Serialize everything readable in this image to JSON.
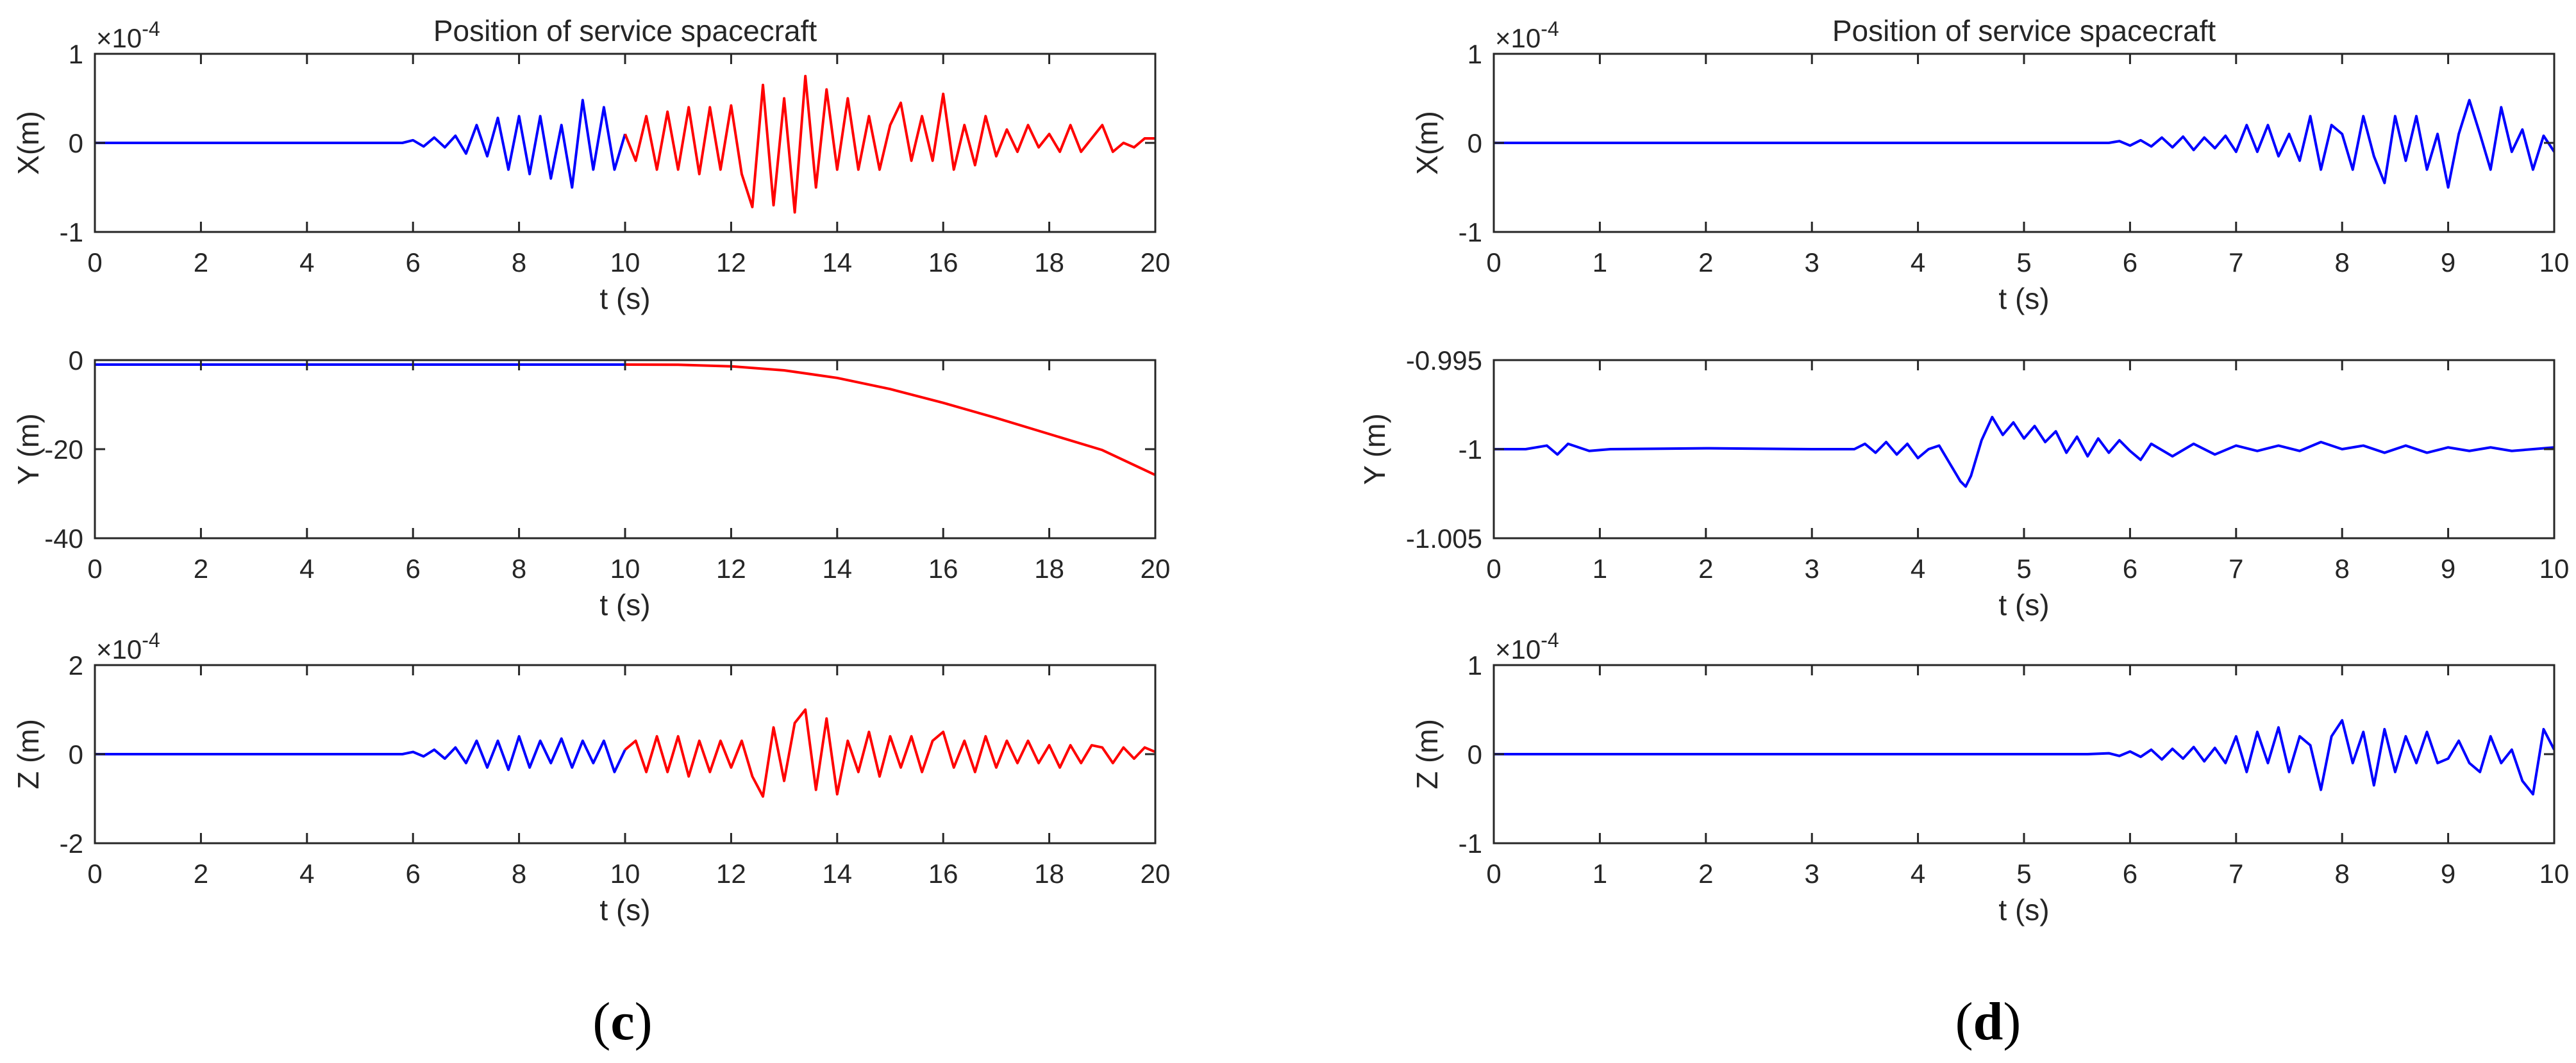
{
  "figure": {
    "panel_labels": [
      {
        "open": "(",
        "letter": "c",
        "close": ")"
      },
      {
        "open": "(",
        "letter": "d",
        "close": ")"
      }
    ]
  },
  "colors": {
    "blue": "#0000ff",
    "red": "#ff0000",
    "axis": "#262626"
  },
  "chart_data": [
    {
      "panel": "c",
      "row": 0,
      "type": "line",
      "title": "Position of service spacecraft",
      "xlabel": "t (s)",
      "ylabel": "X(m)",
      "exponent": "×10-4",
      "xlim": [
        0,
        20
      ],
      "ylim": [
        -1,
        1
      ],
      "xticks": [
        0,
        2,
        4,
        6,
        8,
        10,
        12,
        14,
        16,
        18,
        20
      ],
      "yticks": [
        -1,
        0,
        1
      ],
      "series": [
        {
          "color": "blue",
          "x": [
            0,
            5.8,
            6.0,
            6.2,
            6.4,
            6.6,
            6.8,
            7.0,
            7.2,
            7.4,
            7.6,
            7.8,
            8.0,
            8.2,
            8.4,
            8.6,
            8.8,
            9.0,
            9.2,
            9.4,
            9.6,
            9.8,
            10.0
          ],
          "y": [
            0,
            0,
            0.03,
            -0.04,
            0.06,
            -0.05,
            0.08,
            -0.12,
            0.2,
            -0.15,
            0.28,
            -0.3,
            0.3,
            -0.35,
            0.3,
            -0.4,
            0.2,
            -0.5,
            0.48,
            -0.3,
            0.4,
            -0.3,
            0.1
          ]
        },
        {
          "color": "red",
          "x": [
            10.0,
            10.2,
            10.4,
            10.6,
            10.8,
            11.0,
            11.2,
            11.4,
            11.6,
            11.8,
            12.0,
            12.2,
            12.4,
            12.6,
            12.8,
            13.0,
            13.2,
            13.4,
            13.6,
            13.8,
            14.0,
            14.2,
            14.4,
            14.6,
            14.8,
            15.0,
            15.2,
            15.4,
            15.6,
            15.8,
            16.0,
            16.2,
            16.4,
            16.6,
            16.8,
            17.0,
            17.2,
            17.4,
            17.6,
            17.8,
            18.0,
            18.2,
            18.4,
            18.6,
            18.8,
            19.0,
            19.2,
            19.4,
            19.6,
            19.8,
            20.0
          ],
          "y": [
            0.1,
            -0.2,
            0.3,
            -0.3,
            0.35,
            -0.3,
            0.4,
            -0.35,
            0.4,
            -0.3,
            0.42,
            -0.35,
            -0.72,
            0.65,
            -0.7,
            0.5,
            -0.78,
            0.75,
            -0.5,
            0.6,
            -0.3,
            0.5,
            -0.3,
            0.3,
            -0.3,
            0.2,
            0.45,
            -0.2,
            0.3,
            -0.2,
            0.55,
            -0.3,
            0.2,
            -0.25,
            0.3,
            -0.15,
            0.15,
            -0.1,
            0.2,
            -0.05,
            0.1,
            -0.1,
            0.2,
            -0.1,
            0.05,
            0.2,
            -0.1,
            0.0,
            -0.05,
            0.05,
            0.05
          ]
        }
      ]
    },
    {
      "panel": "c",
      "row": 1,
      "type": "line",
      "title": "",
      "xlabel": "t (s)",
      "ylabel": "Y (m)",
      "exponent": "",
      "xlim": [
        0,
        20
      ],
      "ylim": [
        -40,
        0
      ],
      "xticks": [
        0,
        2,
        4,
        6,
        8,
        10,
        12,
        14,
        16,
        18,
        20
      ],
      "yticks": [
        -40,
        -20,
        0
      ],
      "series": [
        {
          "color": "blue",
          "x": [
            0,
            10
          ],
          "y": [
            -1,
            -1
          ]
        },
        {
          "color": "red",
          "x": [
            10,
            11,
            12,
            13,
            14,
            15,
            16,
            17,
            18,
            19,
            20
          ],
          "y": [
            -1,
            -1.05,
            -1.4,
            -2.3,
            -4.0,
            -6.5,
            -9.6,
            -13.0,
            -16.6,
            -20.2,
            -25.8
          ]
        }
      ]
    },
    {
      "panel": "c",
      "row": 2,
      "type": "line",
      "title": "",
      "xlabel": "t (s)",
      "ylabel": "Z (m)",
      "exponent": "×10-4",
      "xlim": [
        0,
        20
      ],
      "ylim": [
        -2,
        2
      ],
      "xticks": [
        0,
        2,
        4,
        6,
        8,
        10,
        12,
        14,
        16,
        18,
        20
      ],
      "yticks": [
        -2,
        0,
        2
      ],
      "series": [
        {
          "color": "blue",
          "x": [
            0,
            5.8,
            6.0,
            6.2,
            6.4,
            6.6,
            6.8,
            7.0,
            7.2,
            7.4,
            7.6,
            7.8,
            8.0,
            8.2,
            8.4,
            8.6,
            8.8,
            9.0,
            9.2,
            9.4,
            9.6,
            9.8,
            10.0
          ],
          "y": [
            0,
            0,
            0.05,
            -0.05,
            0.1,
            -0.1,
            0.15,
            -0.2,
            0.3,
            -0.3,
            0.3,
            -0.35,
            0.4,
            -0.3,
            0.3,
            -0.2,
            0.35,
            -0.3,
            0.3,
            -0.2,
            0.3,
            -0.4,
            0.1
          ]
        },
        {
          "color": "red",
          "x": [
            10.0,
            10.2,
            10.4,
            10.6,
            10.8,
            11.0,
            11.2,
            11.4,
            11.6,
            11.8,
            12.0,
            12.2,
            12.4,
            12.6,
            12.8,
            13.0,
            13.2,
            13.4,
            13.6,
            13.8,
            14.0,
            14.2,
            14.4,
            14.6,
            14.8,
            15.0,
            15.2,
            15.4,
            15.6,
            15.8,
            16.0,
            16.2,
            16.4,
            16.6,
            16.8,
            17.0,
            17.2,
            17.4,
            17.6,
            17.8,
            18.0,
            18.2,
            18.4,
            18.6,
            18.8,
            19.0,
            19.2,
            19.4,
            19.6,
            19.8,
            20.0
          ],
          "y": [
            0.1,
            0.3,
            -0.4,
            0.4,
            -0.4,
            0.4,
            -0.5,
            0.3,
            -0.4,
            0.3,
            -0.3,
            0.3,
            -0.5,
            -0.95,
            0.6,
            -0.6,
            0.7,
            1.0,
            -0.8,
            0.8,
            -0.9,
            0.3,
            -0.4,
            0.5,
            -0.5,
            0.4,
            -0.3,
            0.4,
            -0.4,
            0.3,
            0.5,
            -0.3,
            0.3,
            -0.4,
            0.4,
            -0.3,
            0.3,
            -0.2,
            0.3,
            -0.2,
            0.2,
            -0.3,
            0.2,
            -0.2,
            0.2,
            0.15,
            -0.2,
            0.15,
            -0.1,
            0.15,
            0.05
          ]
        }
      ]
    },
    {
      "panel": "d",
      "row": 0,
      "type": "line",
      "title": "Position of service spacecraft",
      "xlabel": "t (s)",
      "ylabel": "X(m)",
      "exponent": "×10-4",
      "xlim": [
        0,
        10
      ],
      "ylim": [
        -1,
        1
      ],
      "xticks": [
        0,
        1,
        2,
        3,
        4,
        5,
        6,
        7,
        8,
        9,
        10
      ],
      "yticks": [
        -1,
        0,
        1
      ],
      "series": [
        {
          "color": "blue",
          "x": [
            0,
            5.8,
            5.9,
            6.0,
            6.1,
            6.2,
            6.3,
            6.4,
            6.5,
            6.6,
            6.7,
            6.8,
            6.9,
            7.0,
            7.1,
            7.2,
            7.3,
            7.4,
            7.5,
            7.6,
            7.7,
            7.8,
            7.9,
            8.0,
            8.1,
            8.2,
            8.3,
            8.4,
            8.5,
            8.6,
            8.7,
            8.8,
            8.9,
            9.0,
            9.1,
            9.2,
            9.3,
            9.4,
            9.5,
            9.6,
            9.7,
            9.8,
            9.9,
            10.0
          ],
          "y": [
            0,
            0,
            0.02,
            -0.03,
            0.03,
            -0.04,
            0.06,
            -0.05,
            0.07,
            -0.08,
            0.06,
            -0.06,
            0.08,
            -0.1,
            0.2,
            -0.1,
            0.2,
            -0.15,
            0.1,
            -0.2,
            0.3,
            -0.3,
            0.2,
            0.1,
            -0.3,
            0.3,
            -0.15,
            -0.45,
            0.3,
            -0.2,
            0.3,
            -0.3,
            0.1,
            -0.5,
            0.1,
            0.48,
            0.1,
            -0.3,
            0.4,
            -0.1,
            0.15,
            -0.3,
            0.08,
            -0.1
          ]
        }
      ]
    },
    {
      "panel": "d",
      "row": 1,
      "type": "line",
      "title": "",
      "xlabel": "t (s)",
      "ylabel": "Y (m)",
      "exponent": "",
      "xlim": [
        0,
        10
      ],
      "ylim": [
        -1.005,
        -0.995
      ],
      "xticks": [
        0,
        1,
        2,
        3,
        4,
        5,
        6,
        7,
        8,
        9,
        10
      ],
      "yticks": [
        -1.005,
        -1,
        -0.995
      ],
      "yticklabels": [
        "-1.005",
        "-1",
        "-0.995"
      ],
      "series": [
        {
          "color": "blue",
          "x": [
            0,
            0.3,
            0.5,
            0.6,
            0.7,
            0.9,
            1.1,
            2.0,
            3.0,
            3.4,
            3.5,
            3.6,
            3.7,
            3.8,
            3.9,
            4.0,
            4.1,
            4.2,
            4.3,
            4.4,
            4.45,
            4.5,
            4.6,
            4.7,
            4.8,
            4.9,
            5.0,
            5.1,
            5.2,
            5.3,
            5.4,
            5.5,
            5.6,
            5.7,
            5.8,
            5.9,
            6.0,
            6.1,
            6.2,
            6.4,
            6.6,
            6.8,
            7.0,
            7.2,
            7.4,
            7.6,
            7.8,
            8.0,
            8.2,
            8.4,
            8.6,
            8.8,
            9.0,
            9.2,
            9.4,
            9.6,
            9.8,
            10.0
          ],
          "y": [
            -1.0,
            -1.0,
            -0.9998,
            -1.0003,
            -0.9997,
            -1.0001,
            -1.0,
            -0.99995,
            -1.0,
            -1.0,
            -0.9997,
            -1.0002,
            -0.9996,
            -1.0003,
            -0.9997,
            -1.0005,
            -1.0,
            -0.9998,
            -1.0008,
            -1.0018,
            -1.0021,
            -1.0015,
            -0.9995,
            -0.9982,
            -0.9992,
            -0.9985,
            -0.9994,
            -0.9987,
            -0.9996,
            -0.999,
            -1.0002,
            -0.9993,
            -1.0004,
            -0.9994,
            -1.0002,
            -0.9995,
            -1.0001,
            -1.0006,
            -0.9997,
            -1.0004,
            -0.9997,
            -1.0003,
            -0.9998,
            -1.0001,
            -0.9998,
            -1.0001,
            -0.9996,
            -1.0,
            -0.9998,
            -1.0002,
            -0.9998,
            -1.0002,
            -0.9999,
            -1.0001,
            -0.9999,
            -1.0001,
            -1.0,
            -0.9999
          ]
        }
      ]
    },
    {
      "panel": "d",
      "row": 2,
      "type": "line",
      "title": "",
      "xlabel": "t (s)",
      "ylabel": "Z (m)",
      "exponent": "×10-4",
      "xlim": [
        0,
        10
      ],
      "ylim": [
        -1,
        1
      ],
      "xticks": [
        0,
        1,
        2,
        3,
        4,
        5,
        6,
        7,
        8,
        9,
        10
      ],
      "yticks": [
        -1,
        0,
        1
      ],
      "series": [
        {
          "color": "blue",
          "x": [
            0,
            5.6,
            5.8,
            5.9,
            6.0,
            6.1,
            6.2,
            6.3,
            6.4,
            6.5,
            6.6,
            6.7,
            6.8,
            6.9,
            7.0,
            7.1,
            7.2,
            7.3,
            7.4,
            7.5,
            7.6,
            7.7,
            7.8,
            7.9,
            8.0,
            8.1,
            8.2,
            8.3,
            8.4,
            8.5,
            8.6,
            8.7,
            8.8,
            8.9,
            9.0,
            9.1,
            9.2,
            9.3,
            9.4,
            9.5,
            9.6,
            9.7,
            9.8,
            9.9,
            10.0
          ],
          "y": [
            0,
            0,
            0.01,
            -0.02,
            0.03,
            -0.03,
            0.05,
            -0.06,
            0.06,
            -0.05,
            0.08,
            -0.08,
            0.07,
            -0.1,
            0.2,
            -0.2,
            0.25,
            -0.1,
            0.3,
            -0.2,
            0.2,
            0.1,
            -0.4,
            0.2,
            0.38,
            -0.1,
            0.25,
            -0.35,
            0.28,
            -0.2,
            0.2,
            -0.1,
            0.25,
            -0.1,
            -0.05,
            0.15,
            -0.1,
            -0.2,
            0.2,
            -0.1,
            0.05,
            -0.3,
            -0.45,
            0.28,
            0.05
          ]
        }
      ]
    }
  ]
}
